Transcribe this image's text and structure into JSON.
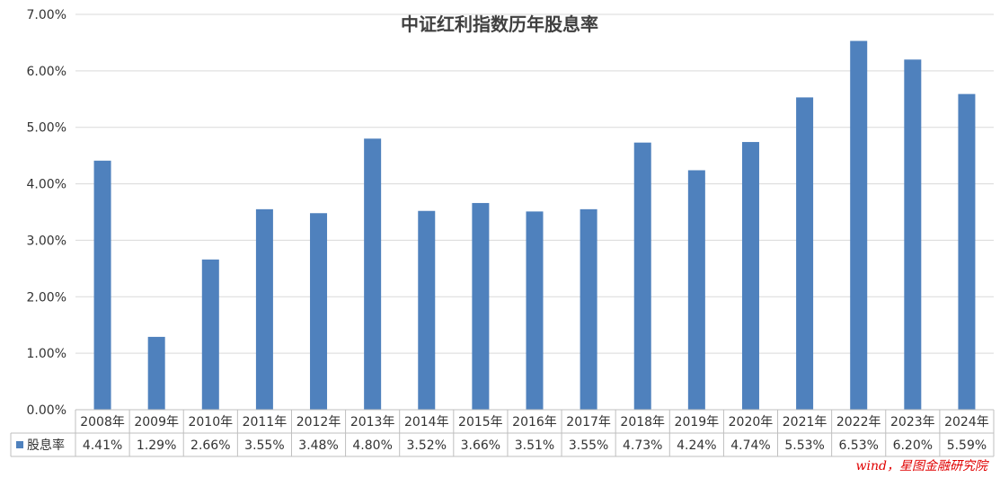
{
  "chart_data": {
    "type": "bar",
    "title": "中证红利指数历年股息率",
    "categories": [
      "2008年",
      "2009年",
      "2010年",
      "2011年",
      "2012年",
      "2013年",
      "2014年",
      "2015年",
      "2016年",
      "2017年",
      "2018年",
      "2019年",
      "2020年",
      "2021年",
      "2022年",
      "2023年",
      "2024年"
    ],
    "series": [
      {
        "name": "股息率",
        "values": [
          4.41,
          1.29,
          2.66,
          3.55,
          3.48,
          4.8,
          3.52,
          3.66,
          3.51,
          3.55,
          4.73,
          4.24,
          4.74,
          5.53,
          6.53,
          6.2,
          5.59
        ],
        "labels": [
          "4.41%",
          "1.29%",
          "2.66%",
          "3.55%",
          "3.48%",
          "4.80%",
          "3.52%",
          "3.66%",
          "3.51%",
          "3.55%",
          "4.73%",
          "4.24%",
          "4.74%",
          "5.53%",
          "6.53%",
          "6.20%",
          "5.59%"
        ],
        "color": "#4F81BD"
      }
    ],
    "y_ticks": [
      "0.00%",
      "1.00%",
      "2.00%",
      "3.00%",
      "4.00%",
      "5.00%",
      "6.00%",
      "7.00%"
    ],
    "ylim": [
      0,
      7
    ],
    "grid": true,
    "legend": "data-table-left",
    "xlabel": "",
    "ylabel": ""
  },
  "source_note": "wind，星图金融研究院"
}
